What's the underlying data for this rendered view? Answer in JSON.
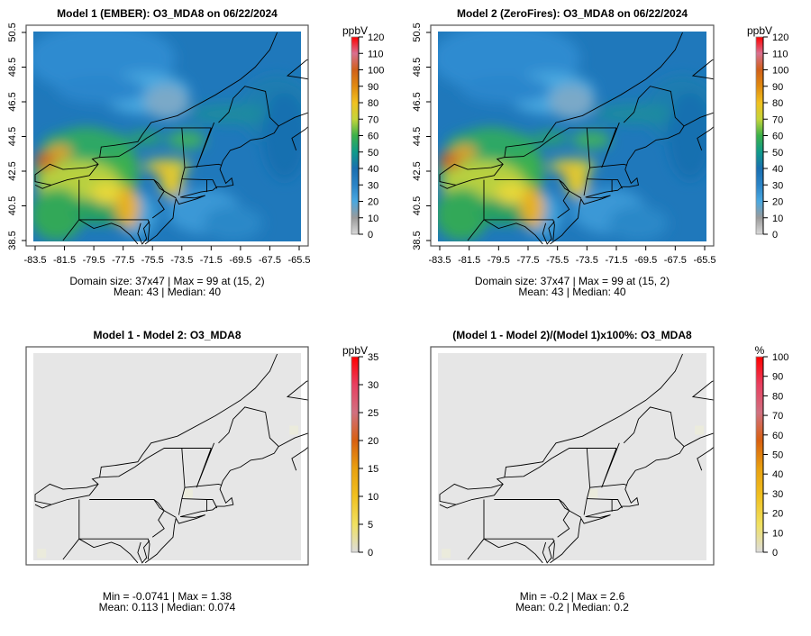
{
  "panels": [
    {
      "id": "model1",
      "title": "Model 1 (EMBER): O3_MDA8 on 06/22/2024",
      "unit": "ppbV",
      "scale": "conc",
      "cbar_ticks": [
        0,
        10,
        20,
        30,
        40,
        50,
        60,
        70,
        80,
        90,
        100,
        110,
        120
      ],
      "cbar_max": 120,
      "show_axes": true,
      "stats": [
        "Domain size: 37x47 | Max = 99 at (15, 2)",
        "Mean: 43 |  Median: 40"
      ]
    },
    {
      "id": "model2",
      "title": "Model 2 (ZeroFires): O3_MDA8 on 06/22/2024",
      "unit": "ppbV",
      "scale": "conc",
      "cbar_ticks": [
        0,
        10,
        20,
        30,
        40,
        50,
        60,
        70,
        80,
        90,
        100,
        110,
        120
      ],
      "cbar_max": 120,
      "show_axes": true,
      "stats": [
        "Domain size: 37x47 | Max = 99 at (15, 2)",
        "Mean: 43 |  Median: 40"
      ]
    },
    {
      "id": "diff",
      "title": "Model 1 - Model 2: O3_MDA8",
      "unit": "ppbV",
      "scale": "diff",
      "cbar_ticks": [
        0,
        5,
        10,
        15,
        20,
        25,
        30,
        35
      ],
      "cbar_max": 35,
      "show_axes": false,
      "stats": [
        "Min = -0.0741 | Max = 1.38",
        "Mean: 0.113 |  Median: 0.074"
      ]
    },
    {
      "id": "pct",
      "title": "(Model 1 - Model 2)/(Model 1)x100%: O3_MDA8",
      "unit": "%",
      "scale": "diff",
      "cbar_ticks": [
        0,
        10,
        20,
        30,
        40,
        50,
        60,
        70,
        80,
        90,
        100
      ],
      "cbar_max": 100,
      "show_axes": false,
      "stats": [
        "Min = -0.2 | Max = 2.6",
        "Mean: 0.2 |  Median: 0.2"
      ]
    }
  ],
  "axes": {
    "lon_ticks": [
      "-83.5",
      "-81.5",
      "-79.5",
      "-77.5",
      "-75.5",
      "-73.5",
      "-71.5",
      "-69.5",
      "-67.5",
      "-65.5"
    ],
    "lat_ticks": [
      "38.5",
      "40.5",
      "42.5",
      "44.5",
      "46.5",
      "48.5",
      "50.5"
    ]
  },
  "colors": {
    "conc": [
      "#d9d9d9",
      "#9a9a9a",
      "#4aa8e0",
      "#2b84c6",
      "#1a6fb0",
      "#109a8a",
      "#3bb04a",
      "#c4d43a",
      "#f0c020",
      "#e08a10",
      "#d0601a",
      "#d87090",
      "#ff0000"
    ],
    "diff": [
      "#dcdcdc",
      "#f0e060",
      "#f0c020",
      "#e8a010",
      "#d86010",
      "#d07080",
      "#e84060",
      "#ff0000"
    ],
    "field_bg": "#e6e6e6"
  }
}
